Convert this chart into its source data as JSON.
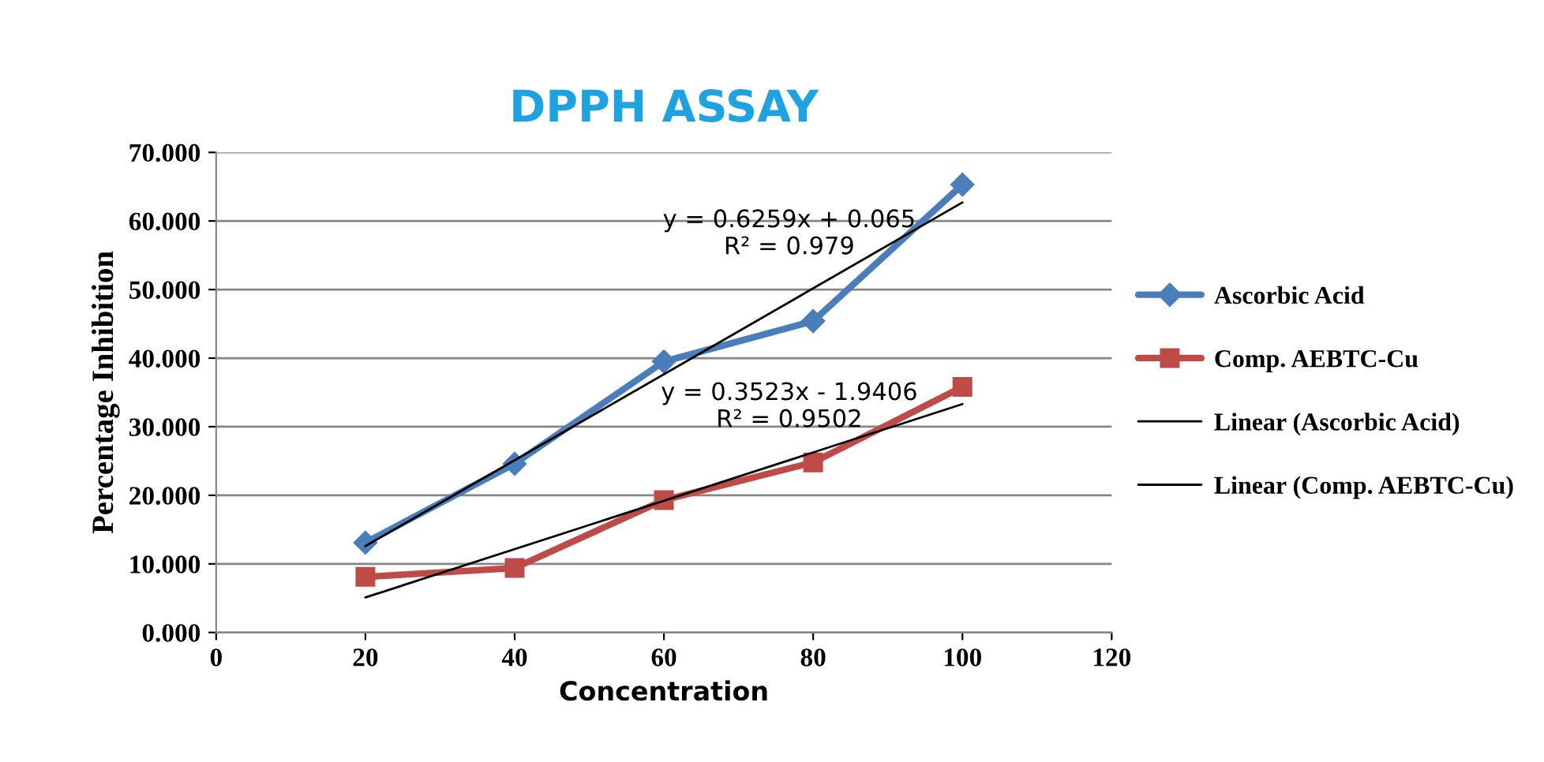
{
  "chart_data": {
    "type": "line",
    "title": "DPPH ASSAY",
    "xlabel": "Concentration",
    "ylabel": "Percentage Inhibition",
    "xlim": [
      0,
      120
    ],
    "xticks": [
      0,
      20,
      40,
      60,
      80,
      100,
      120
    ],
    "ylim": [
      0,
      70
    ],
    "yticks": [
      {
        "value": 0,
        "label": "0.000"
      },
      {
        "value": 10,
        "label": "10.000"
      },
      {
        "value": 20,
        "label": "20.000"
      },
      {
        "value": 30,
        "label": "30.000"
      },
      {
        "value": 40,
        "label": "40.000"
      },
      {
        "value": 50,
        "label": "50.000"
      },
      {
        "value": 60,
        "label": "60.000"
      },
      {
        "value": 70,
        "label": "70.000"
      }
    ],
    "grid": "y",
    "legend": "right",
    "series": [
      {
        "name": "Ascorbic Acid",
        "color": "#4a7ebb",
        "marker": "diamond",
        "x": [
          20,
          40,
          60,
          80,
          100
        ],
        "values": [
          13.1,
          24.6,
          39.5,
          45.4,
          65.3
        ]
      },
      {
        "name": "Comp. AEBTC-Cu",
        "color": "#be4b48",
        "marker": "square",
        "x": [
          20,
          40,
          60,
          80,
          100
        ],
        "values": [
          8.1,
          9.4,
          19.3,
          24.8,
          35.8
        ]
      },
      {
        "name": "Linear (Ascorbic Acid)",
        "color": "#000000",
        "marker": "none",
        "x": [
          20,
          100
        ],
        "values": [
          12.6,
          62.7
        ]
      },
      {
        "name": "Linear (Comp. AEBTC-Cu)",
        "color": "#000000",
        "marker": "none",
        "x": [
          20,
          100
        ],
        "values": [
          5.1,
          33.3
        ]
      }
    ],
    "annotations": [
      "y = 0.6259x + 0.065\nR² = 0.979",
      "y = 0.3523x - 1.9406\nR² = 0.9502"
    ]
  }
}
